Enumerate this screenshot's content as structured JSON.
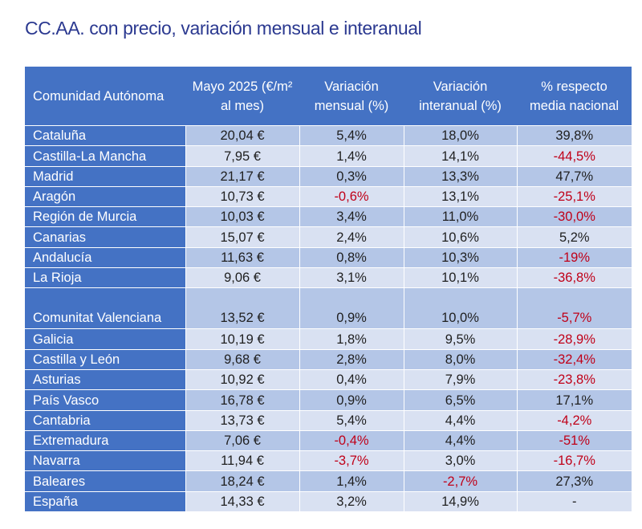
{
  "title": "CC.AA. con precio, variación mensual e interanual",
  "colors": {
    "header_bg": "#4472c4",
    "row_dark": "#b4c6e7",
    "row_light": "#d9e1f2",
    "negative_text": "#c00018",
    "title_text": "#2b3990"
  },
  "table": {
    "headers": [
      "Comunidad Autónoma",
      "Mayo 2025 (€/m² al mes)",
      "Variación mensual (%)",
      "Variación interanual (%)",
      "% respecto media nacional"
    ],
    "rows": [
      {
        "region": "Cataluña",
        "price": "20,04 €",
        "monthly": "5,4%",
        "yearly": "18,0%",
        "vs_national": "39,8%"
      },
      {
        "region": "Castilla-La Mancha",
        "price": "7,95 €",
        "monthly": "1,4%",
        "yearly": "14,1%",
        "vs_national": "-44,5%"
      },
      {
        "region": "Madrid",
        "price": "21,17 €",
        "monthly": "0,3%",
        "yearly": "13,3%",
        "vs_national": "47,7%"
      },
      {
        "region": "Aragón",
        "price": "10,73 €",
        "monthly": "-0,6%",
        "yearly": "13,1%",
        "vs_national": "-25,1%"
      },
      {
        "region": "Región de Murcia",
        "price": "10,03 €",
        "monthly": "3,4%",
        "yearly": "11,0%",
        "vs_national": "-30,0%"
      },
      {
        "region": "Canarias",
        "price": "15,07 €",
        "monthly": "2,4%",
        "yearly": "10,6%",
        "vs_national": "5,2%"
      },
      {
        "region": "Andalucía",
        "price": "11,63 €",
        "monthly": "0,8%",
        "yearly": "10,3%",
        "vs_national": "-19%"
      },
      {
        "region": "La Rioja",
        "price": "9,06 €",
        "monthly": "3,1%",
        "yearly": "10,1%",
        "vs_national": "-36,8%"
      },
      {
        "region": "Comunitat Valenciana",
        "price": "13,52 €",
        "monthly": "0,9%",
        "yearly": "10,0%",
        "vs_national": "-5,7%"
      },
      {
        "region": "Galicia",
        "price": "10,19 €",
        "monthly": "1,8%",
        "yearly": "9,5%",
        "vs_national": "-28,9%"
      },
      {
        "region": "Castilla y León",
        "price": "9,68 €",
        "monthly": "2,8%",
        "yearly": "8,0%",
        "vs_national": "-32,4%"
      },
      {
        "region": "Asturias",
        "price": "10,92 €",
        "monthly": "0,4%",
        "yearly": "7,9%",
        "vs_national": "-23,8%"
      },
      {
        "region": "País Vasco",
        "price": "16,78 €",
        "monthly": "0,9%",
        "yearly": "6,5%",
        "vs_national": "17,1%"
      },
      {
        "region": "Cantabria",
        "price": "13,73 €",
        "monthly": "5,4%",
        "yearly": "4,4%",
        "vs_national": "-4,2%"
      },
      {
        "region": "Extremadura",
        "price": "7,06 €",
        "monthly": "-0,4%",
        "yearly": "4,4%",
        "vs_national": "-51%"
      },
      {
        "region": "Navarra",
        "price": "11,94 €",
        "monthly": "-3,7%",
        "yearly": "3,0%",
        "vs_national": "-16,7%"
      },
      {
        "region": "Baleares",
        "price": "18,24 €",
        "monthly": "1,4%",
        "yearly": "-2,7%",
        "vs_national": "27,3%"
      },
      {
        "region": "España",
        "price": "14,33 €",
        "monthly": "3,2%",
        "yearly": "14,9%",
        "vs_national": "-"
      }
    ]
  }
}
